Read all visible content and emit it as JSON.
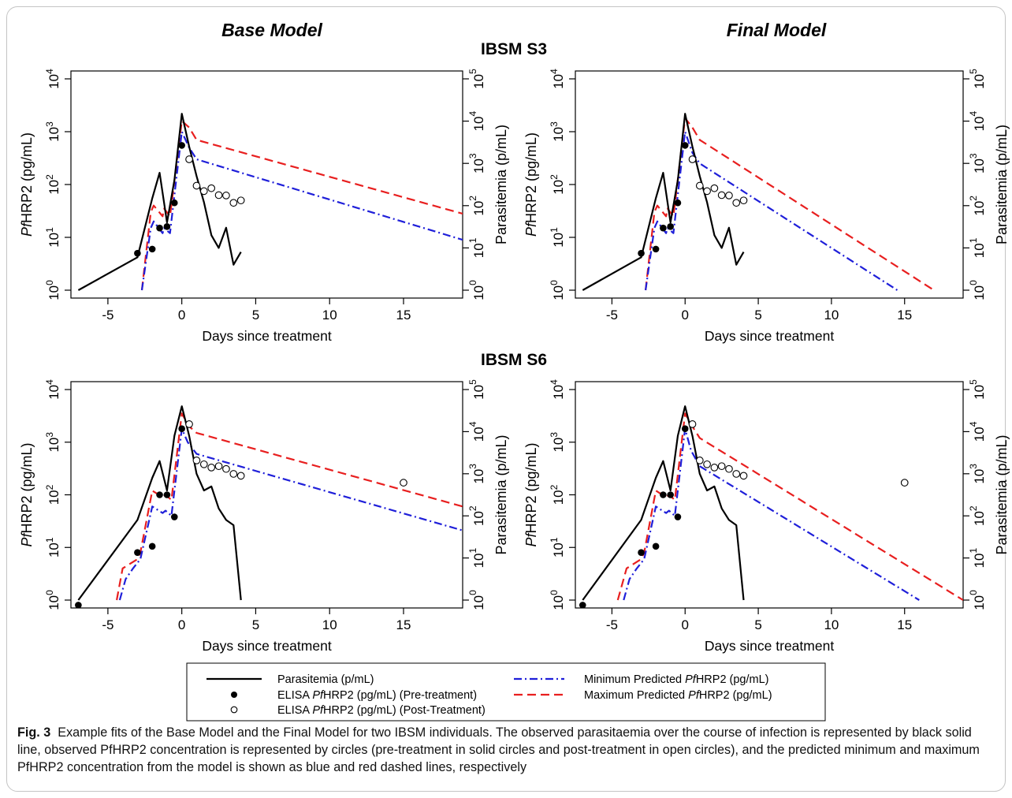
{
  "figure": {
    "column_titles": [
      "Base Model",
      "Final Model"
    ],
    "row_titles": [
      "IBSM S3",
      "IBSM S6"
    ],
    "caption_label": "Fig. 3",
    "caption_text": "Example fits of the Base Model and the Final Model for two IBSM individuals. The observed parasitaemia over the course of infection is represented by black solid line, observed PfHRP2 concentration is represented by circles (pre-treatment in solid circles and post-treatment in open circles), and the predicted minimum and maximum PfHRP2 concentration from the model is shown as blue and red dashed lines, respectively",
    "legend": [
      "Parasitemia (p/mL)",
      "ELISA PfHRP2 (pg/mL) (Pre-treatment)",
      "ELISA PfHRP2 (pg/mL) (Post-Treatment)",
      "Minimum Predicted PfHRP2 (pg/mL)",
      "Maximum Predicted PfHRP2 (pg/mL)"
    ],
    "colors": {
      "parasitemia": "#000000",
      "min_pred": "#1f1fd9",
      "max_pred": "#e81f1f"
    }
  },
  "chart_data": [
    {
      "type": "line",
      "panel": "Base Model / IBSM S3",
      "xlabel": "Days since treatment",
      "ylabel": "PfHRP2 (pg/mL)",
      "y2label": "Parasitemia (p/mL)",
      "xlim": [
        -7.5,
        19
      ],
      "xticks": [
        -5,
        0,
        5,
        10,
        15
      ],
      "ylog": true,
      "ylim": [
        1,
        10000
      ],
      "y2log": true,
      "y2lim": [
        1,
        100000
      ],
      "parasitemia": {
        "x": [
          -7,
          -3,
          -2,
          -1.5,
          -1,
          -0.5,
          0,
          0.5,
          1,
          1.5,
          2,
          2.5,
          3,
          3.5,
          4
        ],
        "y": [
          1,
          6,
          150,
          600,
          40,
          400,
          15000,
          2500,
          500,
          120,
          20,
          10,
          30,
          4,
          8
        ]
      },
      "elisa_pre": {
        "x": [
          -3,
          -2,
          -1.5,
          -1,
          -0.5,
          0
        ],
        "y": [
          5,
          6,
          15,
          16,
          45,
          550
        ]
      },
      "elisa_post": {
        "x": [
          0.5,
          1,
          1.5,
          2,
          2.5,
          3,
          3.5,
          4
        ],
        "y": [
          300,
          95,
          75,
          85,
          63,
          62,
          45,
          50
        ]
      },
      "min_pred": {
        "x": [
          -2.7,
          -2.1,
          -1.9,
          -1.3,
          -1.2,
          -0.8,
          0,
          0.5,
          1,
          19
        ],
        "y": [
          1,
          15,
          20,
          12,
          15,
          12,
          1000,
          500,
          300,
          9
        ]
      },
      "max_pred": {
        "x": [
          -2.7,
          -2.1,
          -1.9,
          -1.3,
          -1.2,
          -0.8,
          0,
          0.5,
          1,
          19
        ],
        "y": [
          1,
          30,
          40,
          25,
          35,
          25,
          1600,
          1200,
          700,
          28
        ]
      }
    },
    {
      "type": "line",
      "panel": "Final Model / IBSM S3",
      "xlabel": "Days since treatment",
      "ylabel": "PfHRP2 (pg/mL)",
      "y2label": "Parasitemia (p/mL)",
      "xlim": [
        -7.5,
        19
      ],
      "xticks": [
        -5,
        0,
        5,
        10,
        15
      ],
      "ylog": true,
      "ylim": [
        1,
        10000
      ],
      "y2log": true,
      "y2lim": [
        1,
        100000
      ],
      "parasitemia": {
        "x": [
          -7,
          -3,
          -2,
          -1.5,
          -1,
          -0.5,
          0,
          0.5,
          1,
          1.5,
          2,
          2.5,
          3,
          3.5,
          4
        ],
        "y": [
          1,
          6,
          150,
          600,
          40,
          400,
          15000,
          2500,
          500,
          120,
          20,
          10,
          30,
          4,
          8
        ]
      },
      "elisa_pre": {
        "x": [
          -3,
          -2,
          -1.5,
          -1,
          -0.5,
          0
        ],
        "y": [
          5,
          6,
          15,
          16,
          45,
          550
        ]
      },
      "elisa_post": {
        "x": [
          0.5,
          1,
          1.5,
          2,
          2.5,
          3,
          3.5,
          4
        ],
        "y": [
          300,
          95,
          75,
          85,
          63,
          62,
          45,
          50
        ]
      },
      "min_pred": {
        "x": [
          -2.7,
          -2.1,
          -1.9,
          -1.3,
          -1.2,
          -0.8,
          0,
          0.5,
          1,
          14.5
        ],
        "y": [
          1,
          15,
          20,
          12,
          15,
          12,
          1000,
          400,
          250,
          1
        ]
      },
      "max_pred": {
        "x": [
          -2.7,
          -2.1,
          -1.9,
          -1.3,
          -1.2,
          -0.8,
          0,
          0.5,
          1,
          17
        ],
        "y": [
          1,
          30,
          40,
          25,
          35,
          25,
          1800,
          1200,
          700,
          1
        ]
      }
    },
    {
      "type": "line",
      "panel": "Base Model / IBSM S6",
      "xlabel": "Days since treatment",
      "ylabel": "PfHRP2 (pg/mL)",
      "y2label": "Parasitemia (p/mL)",
      "xlim": [
        -7.5,
        19
      ],
      "xticks": [
        -5,
        0,
        5,
        10,
        15
      ],
      "ylog": true,
      "ylim": [
        1,
        10000
      ],
      "y2log": true,
      "y2lim": [
        1,
        100000
      ],
      "parasitemia": {
        "x": [
          -7,
          -3,
          -2,
          -1.5,
          -1,
          -0.5,
          0,
          0.5,
          1,
          1.5,
          2,
          2.5,
          3,
          3.5,
          4
        ],
        "y": [
          1,
          80,
          800,
          2000,
          400,
          8000,
          40000,
          8000,
          1000,
          400,
          500,
          150,
          80,
          60,
          1
        ]
      },
      "elisa_pre": {
        "x": [
          -7,
          -3,
          -2,
          -1.5,
          -1,
          -0.5,
          0
        ],
        "y": [
          0.8,
          8,
          10.5,
          100,
          100,
          38,
          1800
        ]
      },
      "elisa_post": {
        "x": [
          0.5,
          1,
          1.5,
          2,
          2.5,
          3,
          3.5,
          4,
          15
        ],
        "y": [
          2200,
          450,
          380,
          330,
          350,
          310,
          250,
          230,
          170
        ]
      },
      "min_pred": {
        "x": [
          -4.2,
          -3.8,
          -3.3,
          -2.8,
          -2,
          -1.3,
          -1.1,
          -0.7,
          0,
          0.4,
          1,
          19
        ],
        "y": [
          1,
          2.5,
          4,
          6,
          60,
          45,
          50,
          40,
          1800,
          1000,
          600,
          21
        ]
      },
      "max_pred": {
        "x": [
          -4.4,
          -4,
          -3,
          -2.8,
          -2,
          -1.3,
          -1.1,
          -0.7,
          0,
          0.5,
          1,
          19
        ],
        "y": [
          1,
          4,
          6,
          8,
          120,
          90,
          100,
          80,
          3500,
          2000,
          1500,
          60
        ]
      }
    },
    {
      "type": "line",
      "panel": "Final Model / IBSM S6",
      "xlabel": "Days since treatment",
      "ylabel": "PfHRP2 (pg/mL)",
      "y2label": "Parasitemia (p/mL)",
      "xlim": [
        -7.5,
        19
      ],
      "xticks": [
        -5,
        0,
        5,
        10,
        15
      ],
      "ylog": true,
      "ylim": [
        1,
        10000
      ],
      "y2log": true,
      "y2lim": [
        1,
        100000
      ],
      "parasitemia": {
        "x": [
          -7,
          -3,
          -2,
          -1.5,
          -1,
          -0.5,
          0,
          0.5,
          1,
          1.5,
          2,
          2.5,
          3,
          3.5,
          4
        ],
        "y": [
          1,
          80,
          800,
          2000,
          400,
          8000,
          40000,
          8000,
          1000,
          400,
          500,
          150,
          80,
          60,
          1
        ]
      },
      "elisa_pre": {
        "x": [
          -7,
          -3,
          -2,
          -1.5,
          -1,
          -0.5,
          0
        ],
        "y": [
          0.8,
          8,
          10.5,
          100,
          100,
          38,
          1800
        ]
      },
      "elisa_post": {
        "x": [
          0.5,
          1,
          1.5,
          2,
          2.5,
          3,
          3.5,
          4,
          15
        ],
        "y": [
          2200,
          450,
          380,
          330,
          350,
          310,
          250,
          230,
          170
        ]
      },
      "min_pred": {
        "x": [
          -4.2,
          -3.8,
          -3.3,
          -2.8,
          -2,
          -1.3,
          -1.1,
          -0.7,
          0,
          0.4,
          1,
          16
        ],
        "y": [
          1,
          2.5,
          4,
          6,
          60,
          45,
          50,
          40,
          1800,
          700,
          350,
          1
        ]
      },
      "max_pred": {
        "x": [
          -4.6,
          -4,
          -3,
          -2.8,
          -2,
          -1.3,
          -1.1,
          -0.7,
          0,
          0.5,
          1,
          19
        ],
        "y": [
          1,
          4,
          6,
          8,
          120,
          90,
          100,
          80,
          3500,
          2000,
          1200,
          1
        ]
      }
    }
  ]
}
